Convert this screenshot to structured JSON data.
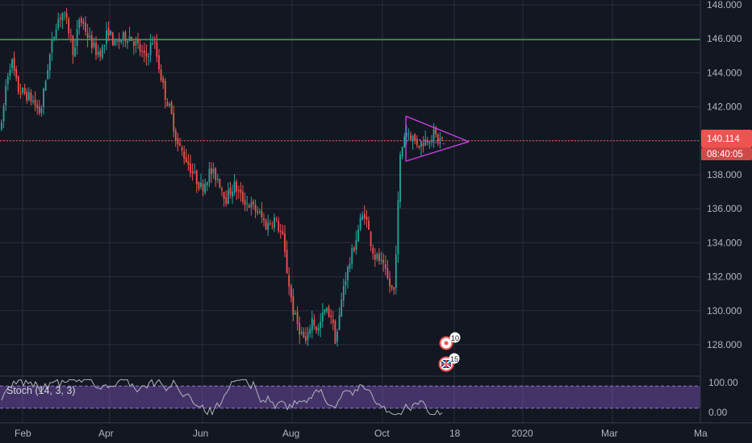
{
  "chart_data": {
    "type": "candlestick",
    "symbol": "",
    "price_axis": {
      "ticks": [
        "148.000",
        "146.000",
        "144.000",
        "142.000",
        "140.000",
        "138.000",
        "136.000",
        "134.000",
        "132.000",
        "130.000",
        "128.000"
      ],
      "ylim": [
        126.0,
        148.3
      ]
    },
    "current_price": "140.114",
    "countdown": "08:40:05",
    "time_axis": {
      "labels": [
        "Feb",
        "Apr",
        "Jun",
        "Aug",
        "Oct",
        "18",
        "2020",
        "Mar",
        "Ma"
      ]
    },
    "horizontal_line_price": 145.95,
    "price_line": 140.0,
    "triangle_pattern": {
      "upper_start": 141.45,
      "lower_start": 138.8,
      "apex": 139.95
    },
    "events": [
      {
        "label": "10",
        "icon": "event-flag-icon"
      },
      {
        "label": "15",
        "icon": "uk-flag-icon"
      }
    ],
    "indicator": {
      "label": "Stoch (14, 3, 3)",
      "ticks": [
        "100.00",
        "0.00"
      ],
      "bands": [
        80,
        20
      ],
      "range": [
        0,
        100
      ]
    },
    "colors": {
      "background": "#131722",
      "grid": "#2a2e39",
      "up": "#26a69a",
      "down": "#ef5350",
      "horizontal_line": "#4caf50",
      "pattern": "#c940e0",
      "price_label": "#ef5350",
      "stoch_band": "#7e57c2",
      "stoch_line": "#b2b5be"
    }
  }
}
